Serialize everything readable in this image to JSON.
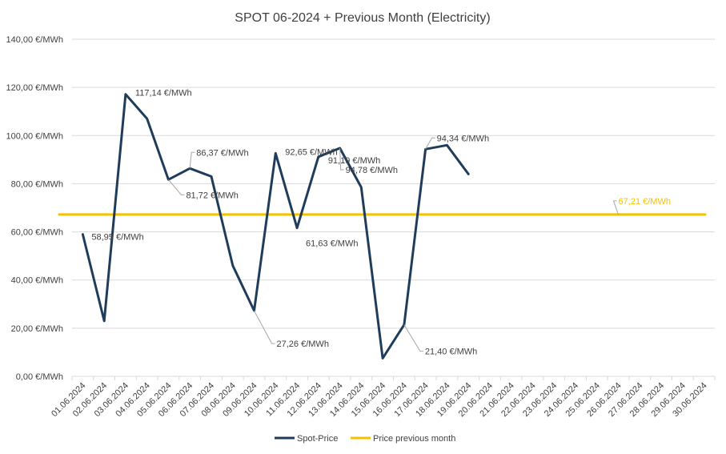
{
  "chart_data": {
    "type": "line",
    "title": "SPOT 06-2024 + Previous Month (Electricity)",
    "ylim": [
      0,
      140
    ],
    "yticks": [
      0,
      20,
      40,
      60,
      80,
      100,
      120,
      140
    ],
    "ytick_labels": [
      "0,00 €/MWh",
      "20,00 €/MWh",
      "40,00 €/MWh",
      "60,00 €/MWh",
      "80,00 €/MWh",
      "100,00 €/MWh",
      "120,00 €/MWh",
      "140,00 €/MWh"
    ],
    "categories": [
      "01.06.2024",
      "02.06.2024",
      "03.06.2024",
      "04.06.2024",
      "05.06.2024",
      "06.06.2024",
      "07.06.2024",
      "08.06.2024",
      "09.06.2024",
      "10.06.2024",
      "11.06.2024",
      "12.06.2024",
      "13.06.2024",
      "14.06.2024",
      "15.06.2024",
      "16.06.2024",
      "17.06.2024",
      "18.06.2024",
      "19.06.2024",
      "20.06.2024",
      "21.06.2024",
      "22.06.2024",
      "23.06.2024",
      "24.06.2024",
      "25.06.2024",
      "26.06.2024",
      "27.06.2024",
      "28.06.2024",
      "29.06.2024",
      "30.06.2024"
    ],
    "grid": true,
    "legend_position": "bottom",
    "series": [
      {
        "name": "Spot-Price",
        "color": "#1f3d5a",
        "values": [
          58.95,
          23.0,
          117.14,
          107.0,
          81.72,
          86.37,
          83.0,
          46.0,
          27.26,
          92.65,
          61.63,
          91.19,
          94.78,
          78.5,
          7.5,
          21.4,
          94.34,
          96.0,
          84.0,
          null,
          null,
          null,
          null,
          null,
          null,
          null,
          null,
          null,
          null,
          null
        ]
      },
      {
        "name": "Price previous month",
        "color": "#f5c000",
        "values": [
          67.21,
          67.21,
          67.21,
          67.21,
          67.21,
          67.21,
          67.21,
          67.21,
          67.21,
          67.21,
          67.21,
          67.21,
          67.21,
          67.21,
          67.21,
          67.21,
          67.21,
          67.21,
          67.21,
          67.21,
          67.21,
          67.21,
          67.21,
          67.21,
          67.21,
          67.21,
          67.21,
          67.21,
          67.21,
          67.21
        ]
      }
    ],
    "data_labels": [
      {
        "series": 0,
        "index": 0,
        "text": "58,95 €/MWh"
      },
      {
        "series": 0,
        "index": 2,
        "text": "117,14 €/MWh"
      },
      {
        "series": 0,
        "index": 4,
        "text": "81,72 €/MWh"
      },
      {
        "series": 0,
        "index": 5,
        "text": "86,37 €/MWh"
      },
      {
        "series": 0,
        "index": 8,
        "text": "27,26 €/MWh"
      },
      {
        "series": 0,
        "index": 9,
        "text": "92,65 €/MWh"
      },
      {
        "series": 0,
        "index": 10,
        "text": "61,63 €/MWh"
      },
      {
        "series": 0,
        "index": 11,
        "text": "91,19 €/MWh"
      },
      {
        "series": 0,
        "index": 12,
        "text": "94,78 €/MWh"
      },
      {
        "series": 0,
        "index": 15,
        "text": "21,40 €/MWh"
      },
      {
        "series": 0,
        "index": 16,
        "text": "94,34 €/MWh"
      },
      {
        "series": 1,
        "index": 25,
        "text": "67,21 €/MWh"
      }
    ]
  }
}
